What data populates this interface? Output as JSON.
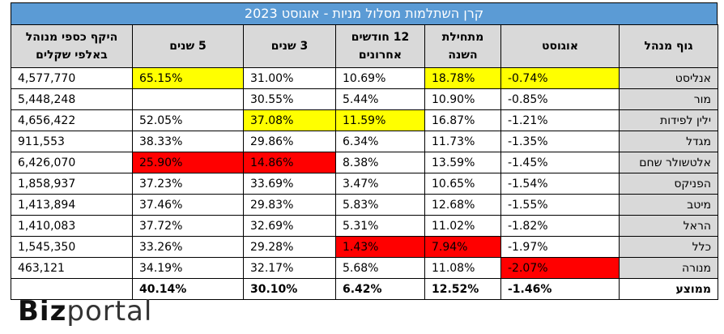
{
  "title": "קרן השתלמות מסלול מניות - אוגוסט 2023",
  "headers": [
    {
      "line1": "גוף מנהל",
      "line2": ""
    },
    {
      "line1": "אוגוסט",
      "line2": ""
    },
    {
      "line1": "מתחילת",
      "line2": "השנה"
    },
    {
      "line1": "12 חודשים",
      "line2": "אחרונים"
    },
    {
      "line1": "3 שנים",
      "line2": ""
    },
    {
      "line1": "5 שנים",
      "line2": ""
    },
    {
      "line1": "היקף כספי מנוהל",
      "line2": "באלפי שקלים"
    }
  ],
  "rows": [
    {
      "name": "אנליסט",
      "cells": [
        "-0.74%",
        "18.78%",
        "10.69%",
        "31.00%",
        "65.15%",
        "4,577,770"
      ],
      "hl": [
        "y",
        "y",
        "",
        "",
        "y",
        ""
      ]
    },
    {
      "name": "מור",
      "cells": [
        "-0.85%",
        "10.90%",
        "5.44%",
        "30.55%",
        "",
        "5,448,248"
      ],
      "hl": [
        "",
        "",
        "",
        "",
        "",
        ""
      ]
    },
    {
      "name": "ילין לפידות",
      "cells": [
        "-1.21%",
        "16.87%",
        "11.59%",
        "37.08%",
        "52.05%",
        "4,656,422"
      ],
      "hl": [
        "",
        "",
        "y",
        "y",
        "",
        ""
      ]
    },
    {
      "name": "מגדל",
      "cells": [
        "-1.35%",
        "11.73%",
        "6.34%",
        "29.86%",
        "38.33%",
        "911,553"
      ],
      "hl": [
        "",
        "",
        "",
        "",
        "",
        ""
      ]
    },
    {
      "name": "אלטשולר שחם",
      "cells": [
        "-1.45%",
        "13.59%",
        "8.38%",
        "14.86%",
        "25.90%",
        "6,426,070"
      ],
      "hl": [
        "",
        "",
        "",
        "r",
        "r",
        ""
      ]
    },
    {
      "name": "הפניקס",
      "cells": [
        "-1.54%",
        "10.65%",
        "3.47%",
        "33.69%",
        "37.23%",
        "1,858,937"
      ],
      "hl": [
        "",
        "",
        "",
        "",
        "",
        ""
      ]
    },
    {
      "name": "מיטב",
      "cells": [
        "-1.55%",
        "12.68%",
        "5.83%",
        "29.83%",
        "37.46%",
        "1,413,894"
      ],
      "hl": [
        "",
        "",
        "",
        "",
        "",
        ""
      ]
    },
    {
      "name": "הראל",
      "cells": [
        "-1.82%",
        "11.02%",
        "5.31%",
        "32.69%",
        "37.72%",
        "1,410,083"
      ],
      "hl": [
        "",
        "",
        "",
        "",
        "",
        ""
      ]
    },
    {
      "name": "כלל",
      "cells": [
        "-1.97%",
        "7.94%",
        "1.43%",
        "29.28%",
        "33.26%",
        "1,545,350"
      ],
      "hl": [
        "",
        "r",
        "r",
        "",
        "",
        ""
      ]
    },
    {
      "name": "מנורה",
      "cells": [
        "-2.07%",
        "11.08%",
        "5.68%",
        "32.17%",
        "34.19%",
        "463,121"
      ],
      "hl": [
        "r",
        "",
        "",
        "",
        "",
        ""
      ]
    }
  ],
  "average": {
    "name": "ממוצע",
    "cells": [
      "-1.46%",
      "12.52%",
      "6.42%",
      "30.10%",
      "40.14%",
      ""
    ]
  },
  "colors": {
    "title_bg": "#5b9bd5",
    "header_bg": "#d9d9d9",
    "highlight_best": "#ffff00",
    "highlight_worst": "#ff0000"
  },
  "logo": {
    "bold": "Biz",
    "light": "portal"
  }
}
